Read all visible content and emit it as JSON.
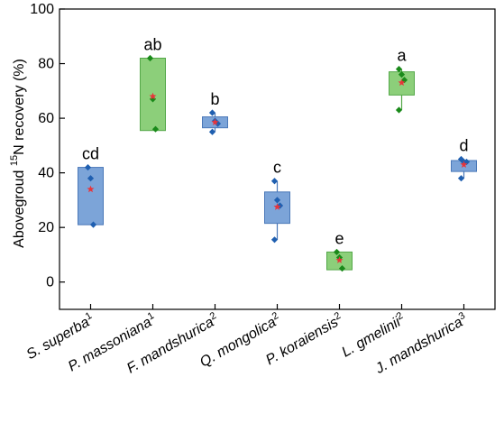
{
  "chart_data": {
    "type": "box",
    "ylabel": {
      "pre": "Abovegroud ",
      "sup": "15",
      "post": "N recovery (%)"
    },
    "ylim": [
      -10,
      100
    ],
    "yticks": [
      0,
      20,
      40,
      60,
      80,
      100
    ],
    "grid": false,
    "colors": {
      "blue_fill": "#7ca4d8",
      "blue_edge": "#4a78b8",
      "blue_point": "#1f5fb0",
      "green_fill": "#8ccf7a",
      "green_edge": "#54a849",
      "green_point": "#1a8a1a",
      "mean_marker": "#e8343a"
    },
    "categories": [
      {
        "name": "S. superba",
        "sup": "1",
        "group": "blue",
        "q1": 21,
        "q3": 42,
        "whisker_low": 21,
        "whisker_high": 42,
        "mean": 34,
        "points": [
          42,
          38,
          21
        ],
        "sig": "cd"
      },
      {
        "name": "P. massoniana",
        "sup": "1",
        "group": "green",
        "q1": 55.5,
        "q3": 82,
        "whisker_low": 55.5,
        "whisker_high": 82,
        "mean": 68,
        "points": [
          82,
          67,
          56
        ],
        "sig": "ab"
      },
      {
        "name": "F. mandshurica",
        "sup": "2",
        "group": "blue",
        "q1": 56.5,
        "q3": 60.5,
        "whisker_low": 55,
        "whisker_high": 62,
        "mean": 58.5,
        "points": [
          62,
          59,
          58,
          55
        ],
        "sig": "b"
      },
      {
        "name": "Q. mongolica",
        "sup": "2",
        "group": "blue",
        "q1": 21.5,
        "q3": 33,
        "whisker_low": 15.5,
        "whisker_high": 37,
        "mean": 27.5,
        "points": [
          37,
          30,
          28,
          15.5
        ],
        "sig": "c"
      },
      {
        "name": "P. koraiensis",
        "sup": "2",
        "group": "green",
        "q1": 4.5,
        "q3": 11,
        "whisker_low": 4.5,
        "whisker_high": 11,
        "mean": 8,
        "points": [
          11,
          9,
          5
        ],
        "sig": "e"
      },
      {
        "name": "L. gmelinii",
        "sup": "2",
        "group": "green",
        "q1": 68.5,
        "q3": 77,
        "whisker_low": 63,
        "whisker_high": 78,
        "mean": 73,
        "points": [
          78,
          76,
          74,
          63
        ],
        "sig": "a"
      },
      {
        "name": "J. mandshurica",
        "sup": "3",
        "group": "blue",
        "q1": 40.5,
        "q3": 44.5,
        "whisker_low": 38,
        "whisker_high": 45,
        "mean": 43,
        "points": [
          45,
          44,
          44,
          38
        ],
        "sig": "d"
      }
    ]
  }
}
